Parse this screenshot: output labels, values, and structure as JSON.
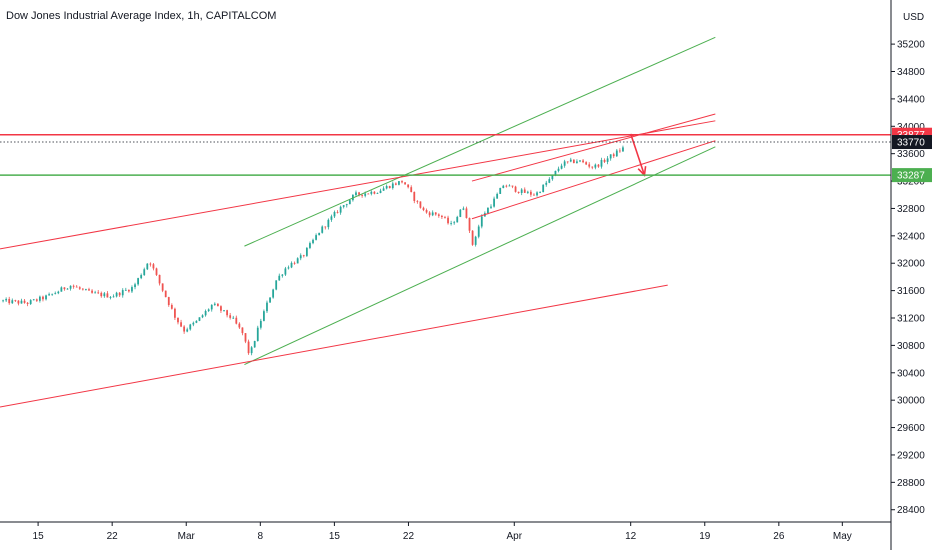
{
  "chart_data": {
    "type": "candlestick",
    "title": "Dow Jones Industrial Average Index, 1h, CAPITALCOM",
    "currency": "USD",
    "y_ticks": [
      35200,
      34800,
      34400,
      34000,
      33600,
      33200,
      32800,
      32400,
      32000,
      31600,
      31200,
      30800,
      30400,
      30000,
      29600,
      29200,
      28800,
      28400
    ],
    "ylim": [
      28250,
      35450
    ],
    "x_ticks": [
      {
        "label": "15",
        "day": 15
      },
      {
        "label": "22",
        "day": 22
      },
      {
        "label": "Mar",
        "day": 29
      },
      {
        "label": "8",
        "day": 36
      },
      {
        "label": "15",
        "day": 43
      },
      {
        "label": "22",
        "day": 50
      },
      {
        "label": "Apr",
        "day": 60
      },
      {
        "label": "12",
        "day": 71
      },
      {
        "label": "19",
        "day": 78
      },
      {
        "label": "26",
        "day": 85
      },
      {
        "label": "May",
        "day": 91
      }
    ],
    "xlim": [
      11.4,
      95.6
    ],
    "price_keypoints": [
      [
        11.4,
        31450
      ],
      [
        14,
        31420
      ],
      [
        16,
        31520
      ],
      [
        18,
        31680
      ],
      [
        20,
        31560
      ],
      [
        22,
        31520
      ],
      [
        24,
        31650
      ],
      [
        25.5,
        32050
      ],
      [
        26.5,
        31700
      ],
      [
        28,
        31200
      ],
      [
        28.8,
        31020
      ],
      [
        30,
        31150
      ],
      [
        31.5,
        31400
      ],
      [
        33.3,
        31200
      ],
      [
        34.3,
        30980
      ],
      [
        35,
        30650
      ],
      [
        36,
        31150
      ],
      [
        37.5,
        31750
      ],
      [
        38.5,
        31950
      ],
      [
        40,
        32100
      ],
      [
        41.5,
        32450
      ],
      [
        43.5,
        32800
      ],
      [
        45,
        33000
      ],
      [
        47,
        33050
      ],
      [
        48.5,
        33150
      ],
      [
        49.5,
        33200
      ],
      [
        50.5,
        32950
      ],
      [
        51.5,
        32750
      ],
      [
        53,
        32700
      ],
      [
        54,
        32550
      ],
      [
        55.3,
        32850
      ],
      [
        56,
        32250
      ],
      [
        57,
        32700
      ],
      [
        58,
        32900
      ],
      [
        59,
        33150
      ],
      [
        60.5,
        33050
      ],
      [
        62,
        33000
      ],
      [
        63.5,
        33250
      ],
      [
        64.5,
        33450
      ],
      [
        66,
        33500
      ],
      [
        67.5,
        33400
      ],
      [
        69,
        33550
      ],
      [
        70.5,
        33700
      ]
    ],
    "horizontal_levels": [
      {
        "name": "resistance",
        "value": 33877,
        "label": "33877",
        "color": "#f23645"
      },
      {
        "name": "last",
        "value": 33770,
        "label": "33770",
        "color": "#131722"
      },
      {
        "name": "support",
        "value": 33287,
        "label": "33287",
        "color": "#4caf50"
      }
    ],
    "trendlines": [
      {
        "name": "green-upper-channel",
        "color": "#4caf50",
        "points": [
          [
            34.5,
            32250
          ],
          [
            79,
            35300
          ]
        ]
      },
      {
        "name": "green-lower-channel",
        "color": "#4caf50",
        "points": [
          [
            34.5,
            30520
          ],
          [
            79,
            33700
          ]
        ]
      },
      {
        "name": "red-lower-long",
        "color": "#f23645",
        "points": [
          [
            11.4,
            29900
          ],
          [
            74.5,
            31680
          ]
        ]
      },
      {
        "name": "red-upper-long",
        "color": "#f23645",
        "points": [
          [
            11.4,
            32210
          ],
          [
            79,
            34080
          ]
        ]
      },
      {
        "name": "red-upper-short",
        "color": "#f23645",
        "points": [
          [
            56,
            33200
          ],
          [
            79,
            34180
          ]
        ]
      },
      {
        "name": "red-lower-short",
        "color": "#f23645",
        "points": [
          [
            56,
            32650
          ],
          [
            79,
            33790
          ]
        ]
      }
    ],
    "projection_arrow": {
      "color": "#f23645",
      "from": [
        71,
        33890
      ],
      "to": [
        72.3,
        33287
      ]
    },
    "colors": {
      "up": "#26a69a",
      "down": "#ef5350",
      "axis": "#131722",
      "grid": "#e0e3eb"
    }
  }
}
